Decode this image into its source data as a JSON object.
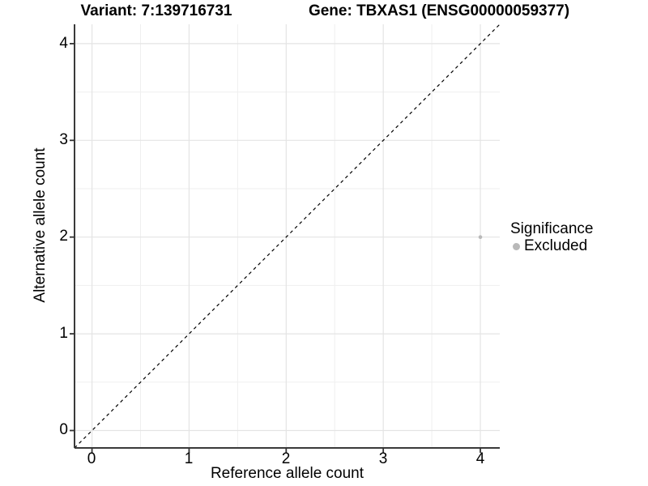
{
  "header": {
    "variant_title": "Variant: 7:139716731",
    "gene_title": "Gene: TBXAS1 (ENSG00000059377)"
  },
  "axes": {
    "x": {
      "label": "Reference allele count",
      "ticks": [
        "0",
        "1",
        "2",
        "3",
        "4"
      ]
    },
    "y": {
      "label": "Alternative allele count",
      "ticks": [
        "0",
        "1",
        "2",
        "3",
        "4"
      ]
    }
  },
  "legend": {
    "title": "Significance",
    "items": [
      {
        "label": "Excluded",
        "color": "#b9b9b9"
      }
    ]
  },
  "colors": {
    "background": "#ffffff",
    "grid_major": "#e4e4e4",
    "grid_minor": "#efefef",
    "axis_line": "#3a3a3a",
    "tick_mark": "#333333",
    "identity_line": "#000000",
    "point": "#b9b9b9",
    "text": "#000000"
  },
  "chart_data": {
    "type": "scatter",
    "title": [
      "Variant: 7:139716731",
      "Gene: TBXAS1 (ENSG00000059377)"
    ],
    "xlabel": "Reference allele count",
    "ylabel": "Alternative allele count",
    "xlim": [
      -0.18,
      4.2
    ],
    "ylim": [
      -0.18,
      4.2
    ],
    "x_major_ticks": [
      0,
      1,
      2,
      3,
      4
    ],
    "y_major_ticks": [
      0,
      1,
      2,
      3,
      4
    ],
    "x_minor_ticks": [
      0.5,
      1.5,
      2.5,
      3.5
    ],
    "y_minor_ticks": [
      0.5,
      1.5,
      2.5,
      3.5
    ],
    "grid": true,
    "identity_line": {
      "style": "dashed",
      "slope": 1,
      "intercept": 0
    },
    "series": [
      {
        "name": "Excluded",
        "color": "#b9b9b9",
        "points": [
          {
            "x": 4,
            "y": 2
          }
        ]
      }
    ],
    "legend_position": "right",
    "legend_title": "Significance"
  }
}
